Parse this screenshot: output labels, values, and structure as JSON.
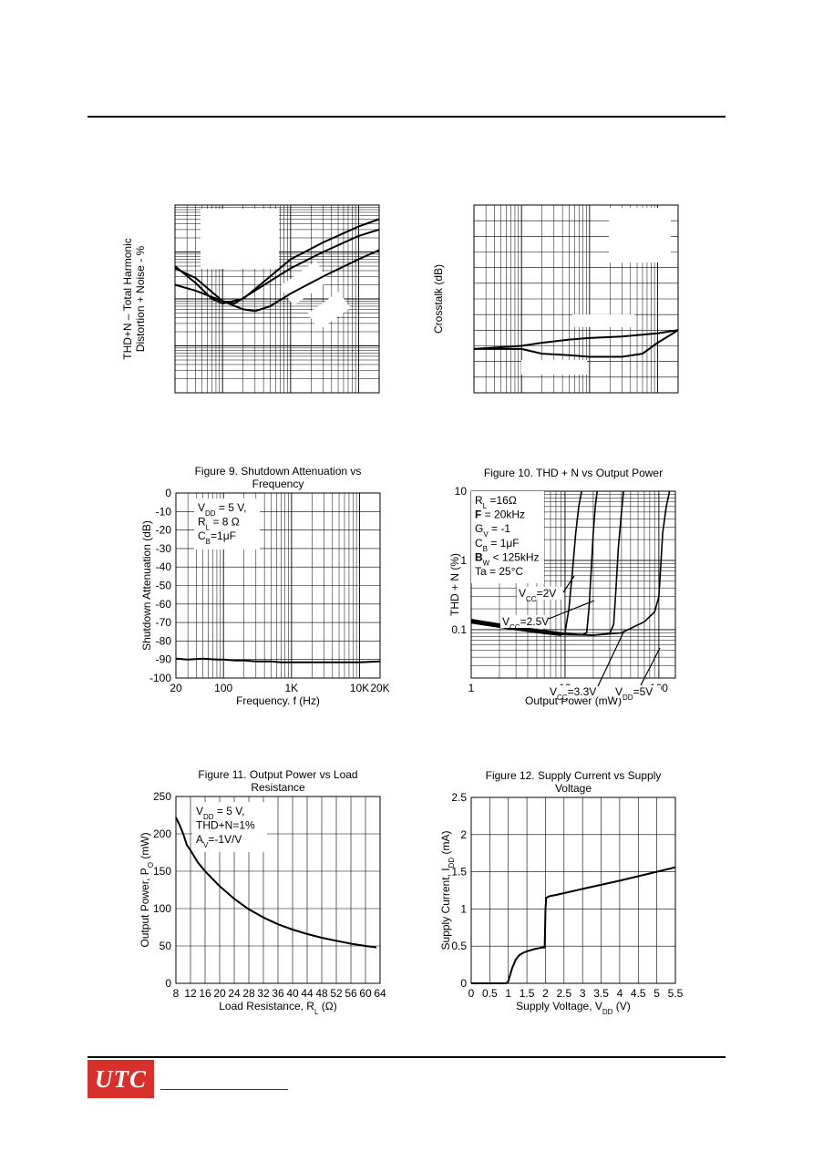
{
  "footer": {
    "logo_text": "UTC"
  },
  "chart_data": [
    {
      "id": "c1",
      "type": "line",
      "ylabel": [
        "THD+N – Total Harmonic",
        "Distortion + Noise - %"
      ],
      "xscale": "log",
      "yscale": "log",
      "xlim": [
        20,
        20000
      ],
      "ylim": [
        0.001,
        10
      ],
      "grid": true,
      "series": [
        {
          "x": [
            20,
            40,
            70,
            100,
            200,
            500,
            1000,
            3000,
            10000,
            20000
          ],
          "values": [
            0.5,
            0.22,
            0.1,
            0.08,
            0.1,
            0.3,
            0.7,
            1.6,
            3.5,
            5.0
          ]
        },
        {
          "x": [
            20,
            40,
            70,
            100,
            150,
            300,
            1000,
            3000,
            10000,
            20000
          ],
          "values": [
            0.45,
            0.28,
            0.14,
            0.09,
            0.08,
            0.15,
            0.45,
            1.0,
            2.2,
            3.0
          ]
        },
        {
          "x": [
            20,
            40,
            100,
            200,
            300,
            500,
            1000,
            3000,
            10000,
            20000
          ],
          "values": [
            0.2,
            0.15,
            0.09,
            0.06,
            0.055,
            0.07,
            0.13,
            0.3,
            0.7,
            1.1
          ]
        }
      ]
    },
    {
      "id": "c2",
      "type": "line",
      "ylabel": "Crosstalk (dB)",
      "xscale": "log",
      "xlim": [
        20,
        20000
      ],
      "ylim": [
        -120,
        0
      ],
      "grid": true,
      "series": [
        {
          "x": [
            20,
            100,
            200,
            500,
            1000,
            3000,
            10000,
            20000
          ],
          "values": [
            -92,
            -90,
            -88,
            -86,
            -85,
            -84,
            -82,
            -80
          ]
        },
        {
          "x": [
            20,
            100,
            200,
            500,
            1000,
            3000,
            6000,
            10000,
            20000
          ],
          "values": [
            -92,
            -92,
            -95,
            -96,
            -97,
            -97,
            -95,
            -88,
            -80
          ]
        }
      ]
    },
    {
      "id": "c3",
      "type": "line",
      "title": [
        "Figure 9. Shutdown Attenuation vs",
        "Frequency"
      ],
      "xlabel": "Frequency. f (Hz)",
      "ylabel": "Shutdown Attenuation (dB)",
      "xscale": "log",
      "xlim": [
        20,
        20000
      ],
      "ylim": [
        -100,
        0
      ],
      "x_ticks": [
        20,
        100,
        1000,
        10000,
        20000
      ],
      "x_tick_labels": [
        "20",
        "100",
        "1K",
        "10K",
        "20K"
      ],
      "y_ticks": [
        0,
        -10,
        -20,
        -30,
        -40,
        -50,
        -60,
        -70,
        -80,
        -90,
        -100
      ],
      "grid": true,
      "annotations": [
        {
          "sub": [
            [
              "V",
              "normal"
            ],
            [
              "DD",
              "sub"
            ],
            [
              " = 5 V,",
              "normal"
            ]
          ]
        },
        {
          "sub": [
            [
              "R",
              "normal"
            ],
            [
              "L",
              "sub"
            ],
            [
              " = 8  Ω",
              "normal"
            ]
          ]
        },
        {
          "sub": [
            [
              "C",
              "normal"
            ],
            [
              "B",
              "sub"
            ],
            [
              "=1μF",
              "normal"
            ]
          ]
        }
      ],
      "series": [
        {
          "x": [
            20,
            30,
            50,
            80,
            100,
            150,
            200,
            300,
            500,
            700,
            1000,
            2000,
            5000,
            10000,
            20000
          ],
          "values": [
            -89.5,
            -90,
            -89.5,
            -90,
            -90,
            -90.5,
            -90.5,
            -91,
            -91,
            -91.5,
            -91.5,
            -91.5,
            -91.5,
            -91.5,
            -91
          ]
        }
      ]
    },
    {
      "id": "c4",
      "type": "line",
      "title": [
        "Figure  10. THD + N vs Output Power"
      ],
      "xlabel": "Output Power (mW)",
      "ylabel": "THD + N (%)",
      "xscale": "log",
      "yscale": "log",
      "xlim": [
        1,
        150
      ],
      "ylim": [
        0.02,
        10
      ],
      "x_ticks": [
        1,
        10,
        100
      ],
      "x_tick_labels": [
        "1",
        "10",
        "100"
      ],
      "y_ticks": [
        10,
        1,
        0.1
      ],
      "y_tick_labels": [
        "10",
        "1",
        "0.1"
      ],
      "grid": true,
      "annotations": [
        {
          "sub": [
            [
              "R",
              "normal"
            ],
            [
              "L",
              "sub"
            ],
            [
              " =16Ω",
              "normal"
            ]
          ]
        },
        {
          "sub": [
            [
              "F",
              "bold"
            ],
            [
              " = 20kHz",
              "normal"
            ]
          ]
        },
        {
          "sub": [
            [
              "G",
              "normal"
            ],
            [
              "V",
              "sub"
            ],
            [
              " = -1",
              "normal"
            ]
          ]
        },
        {
          "sub": [
            [
              "C",
              "normal"
            ],
            [
              "B",
              "sub"
            ],
            [
              " = 1μF",
              "normal"
            ]
          ]
        },
        {
          "sub": [
            [
              "B",
              "bold"
            ],
            [
              "W",
              "sub"
            ],
            [
              " < 125kHz",
              "normal"
            ]
          ]
        },
        {
          "sub": [
            [
              "Ta = 25°C",
              "normal"
            ]
          ]
        }
      ],
      "curve_labels": [
        {
          "sub": [
            [
              "V",
              "normal"
            ],
            [
              "CC",
              "sub"
            ],
            [
              "=2V",
              "normal"
            ]
          ]
        },
        {
          "sub": [
            [
              "V",
              "normal"
            ],
            [
              "CC",
              "sub"
            ],
            [
              "=2.5V",
              "normal"
            ]
          ]
        },
        {
          "sub": [
            [
              "V",
              "normal"
            ],
            [
              "CC",
              "sub"
            ],
            [
              "=3.3V",
              "normal"
            ]
          ]
        },
        {
          "sub": [
            [
              "V",
              "normal"
            ],
            [
              "DD",
              "sub"
            ],
            [
              "=5V",
              "normal"
            ]
          ]
        }
      ],
      "series": [
        {
          "x": [
            1,
            3,
            6,
            9,
            10,
            11,
            12,
            13,
            14,
            15
          ],
          "values": [
            0.125,
            0.1,
            0.088,
            0.083,
            0.09,
            0.2,
            0.7,
            2.5,
            6,
            10
          ]
        },
        {
          "x": [
            1,
            3,
            6,
            10,
            15,
            17,
            18,
            19,
            20,
            21,
            22
          ],
          "values": [
            0.13,
            0.1,
            0.09,
            0.085,
            0.084,
            0.09,
            0.2,
            0.7,
            2.5,
            6,
            10
          ]
        },
        {
          "x": [
            1,
            3,
            6,
            10,
            20,
            30,
            33,
            35,
            37,
            40,
            42
          ],
          "values": [
            0.135,
            0.105,
            0.092,
            0.085,
            0.083,
            0.088,
            0.12,
            0.4,
            1.5,
            5,
            10
          ]
        },
        {
          "x": [
            1,
            3,
            10,
            20,
            40,
            70,
            90,
            100,
            105,
            110,
            120,
            130
          ],
          "values": [
            0.14,
            0.11,
            0.088,
            0.083,
            0.09,
            0.13,
            0.18,
            0.3,
            0.9,
            2.5,
            6,
            10
          ]
        }
      ]
    },
    {
      "id": "c5",
      "type": "line",
      "title": [
        "Figure 11. Output Power vs Load",
        "Resistance"
      ],
      "xlabel": "Load Resistance, R_L (Ω)",
      "ylabel": "Output Power, P_O (mW)",
      "xlim": [
        8,
        64
      ],
      "ylim": [
        0,
        250
      ],
      "x_ticks": [
        8,
        12,
        16,
        20,
        24,
        28,
        32,
        36,
        40,
        44,
        48,
        52,
        56,
        60,
        64
      ],
      "x_tick_labels": [
        "8",
        "12",
        "16",
        "20",
        "24",
        "28",
        "32",
        "36",
        "40",
        "44",
        "48",
        "52",
        "56",
        "60",
        "64"
      ],
      "y_ticks": [
        0,
        50,
        100,
        150,
        200,
        250
      ],
      "grid": true,
      "annotations": [
        {
          "sub": [
            [
              "V",
              "normal"
            ],
            [
              "DD",
              "sub"
            ],
            [
              " = 5 V,",
              "normal"
            ]
          ]
        },
        {
          "sub": [
            [
              "THD+N=1%",
              "normal"
            ]
          ]
        },
        {
          "sub": [
            [
              "A",
              "normal"
            ],
            [
              "V",
              "sub"
            ],
            [
              "=-1V/V",
              "normal"
            ]
          ]
        }
      ],
      "series": [
        {
          "x": [
            8,
            9,
            10,
            11,
            12,
            14,
            16,
            20,
            24,
            28,
            32,
            36,
            40,
            44,
            48,
            52,
            56,
            60,
            63
          ],
          "values": [
            222,
            212,
            200,
            185,
            178,
            162,
            150,
            130,
            113,
            99,
            88,
            79,
            72,
            66,
            61,
            57,
            53,
            50,
            48
          ]
        }
      ]
    },
    {
      "id": "c6",
      "type": "line",
      "title": [
        "Figure 12. Supply Current vs Supply",
        "Voltage"
      ],
      "xlabel": "Supply Voltage, V_DD (V)",
      "ylabel": "Supply Current, I_DD (mA)",
      "xlim": [
        0,
        5.5
      ],
      "ylim": [
        0,
        2.5
      ],
      "x_ticks": [
        0,
        0.5,
        1,
        1.5,
        2,
        2.5,
        3,
        3.5,
        4,
        4.5,
        5,
        5.5
      ],
      "x_tick_labels": [
        "0",
        "0.5",
        "1",
        "1.5",
        "2",
        "2.5",
        "3",
        "3.5",
        "4",
        "4.5",
        "5",
        "5.5"
      ],
      "y_ticks": [
        0,
        0.5,
        1,
        1.5,
        2,
        2.5
      ],
      "grid": true,
      "series": [
        {
          "x": [
            0,
            0.95,
            1.0,
            1.1,
            1.2,
            1.3,
            1.4,
            1.5,
            1.7,
            1.9,
            1.98,
            2.0,
            2.02,
            2.1,
            2.3,
            3,
            4,
            5,
            5.5
          ],
          "values": [
            0,
            0,
            0.03,
            0.2,
            0.32,
            0.38,
            0.41,
            0.43,
            0.46,
            0.48,
            0.48,
            1.0,
            1.15,
            1.17,
            1.19,
            1.27,
            1.38,
            1.5,
            1.56
          ]
        }
      ]
    }
  ]
}
